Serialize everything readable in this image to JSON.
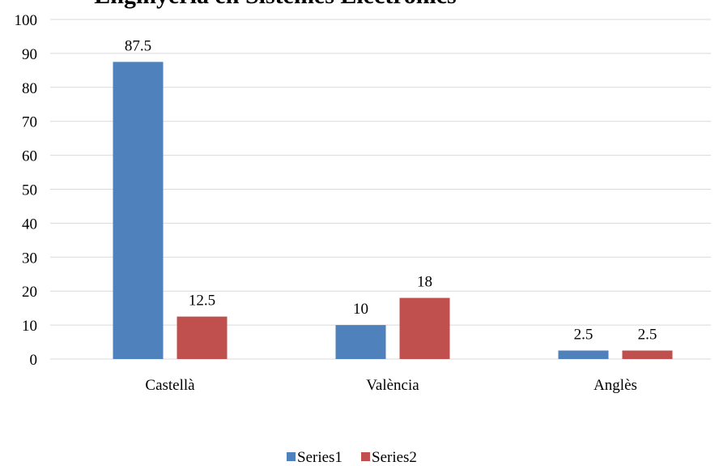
{
  "chart_data": {
    "type": "bar",
    "title": "Enginyeria en Sistemes Electrònics",
    "categories": [
      "Castellà",
      "València",
      "Anglès"
    ],
    "series": [
      {
        "name": "Series1",
        "color": "#4f81bd",
        "values": [
          87.5,
          10,
          2.5
        ]
      },
      {
        "name": "Series2",
        "color": "#c0504d",
        "values": [
          12.5,
          18,
          2.5
        ]
      }
    ],
    "ylim": [
      0,
      100
    ],
    "yticks": [
      0,
      10,
      20,
      30,
      40,
      50,
      60,
      70,
      80,
      90,
      100
    ],
    "grid": true,
    "legend": "bottom"
  }
}
